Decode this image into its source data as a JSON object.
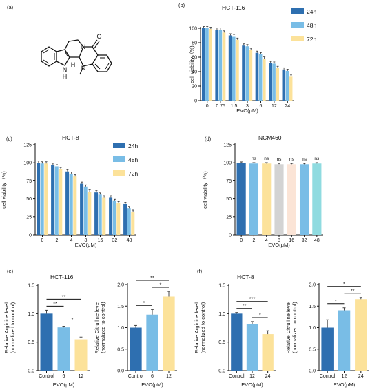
{
  "colors": {
    "c24": "#2e6fb0",
    "c48": "#79bde6",
    "c72": "#fce29a",
    "gray": "#d3d3d3",
    "teal": "#8fdbe0",
    "pink": "#fbe4d6"
  },
  "molecule": {
    "label_nh": "N",
    "label_h": "H",
    "label_h2": "H",
    "label_n2": "N",
    "label_n3": "N",
    "label_o": "O"
  },
  "chart_data": [
    {
      "id": "b",
      "panel_label": "(b)",
      "type": "bar",
      "title": "HCT-116",
      "xlabel": "EVO(μM)",
      "ylabel": "cell viability（%)",
      "categories": [
        "0",
        "0.75",
        "1.5",
        "3",
        "6",
        "12",
        "24"
      ],
      "ylim": [
        0,
        100
      ],
      "yticks": [
        "0",
        "20",
        "40",
        "60",
        "80",
        "100"
      ],
      "legend": "top-right",
      "series": [
        {
          "name": "24h",
          "color": "#2e6fb0",
          "values": [
            100,
            98,
            90,
            76,
            66,
            52,
            43
          ]
        },
        {
          "name": "48h",
          "color": "#79bde6",
          "values": [
            100,
            98,
            89,
            75,
            64,
            51,
            41
          ]
        },
        {
          "name": "72h",
          "color": "#fce29a",
          "values": [
            99,
            94,
            84,
            70,
            58,
            45,
            33
          ]
        }
      ]
    },
    {
      "id": "c",
      "panel_label": "(c)",
      "type": "bar",
      "title": "HCT-8",
      "xlabel": "EVO(μM)",
      "ylabel": "cell viability（%)",
      "categories": [
        "0",
        "2",
        "4",
        "8",
        "16",
        "32",
        "48"
      ],
      "ylim": [
        0,
        125
      ],
      "yticks": [
        "0",
        "25",
        "50",
        "75",
        "100",
        "125"
      ],
      "legend": "top-right",
      "series": [
        {
          "name": "24h",
          "color": "#2e6fb0",
          "values": [
            100,
            97,
            88,
            71,
            59,
            52,
            43
          ]
        },
        {
          "name": "48h",
          "color": "#79bde6",
          "values": [
            99,
            95,
            85,
            67,
            56,
            47,
            37
          ]
        },
        {
          "name": "72h",
          "color": "#fce29a",
          "values": [
            99,
            91,
            81,
            60,
            52,
            44,
            32
          ]
        }
      ]
    },
    {
      "id": "d",
      "panel_label": "(d)",
      "type": "bar",
      "title": "NCM460",
      "xlabel": "EVO(μM)",
      "ylabel": "cell viability（%)",
      "categories": [
        "0",
        "2",
        "4",
        "8",
        "16",
        "32",
        "48"
      ],
      "ylim": [
        0,
        125
      ],
      "yticks": [
        "0",
        "25",
        "50",
        "75",
        "100",
        "125"
      ],
      "bar_colors": [
        "#2e6fb0",
        "#79bde6",
        "#fce29a",
        "#d3d3d3",
        "#fbe4d6",
        "#79bde6",
        "#8fdbe0"
      ],
      "values": [
        100,
        99,
        99,
        98,
        98,
        98,
        99
      ],
      "annotations": [
        "",
        "ns",
        "ns",
        "ns",
        "ns",
        "ns",
        "ns"
      ]
    },
    {
      "id": "e1",
      "panel_label": "(e)",
      "type": "bar",
      "title": "HCT-116",
      "xlabel": "EVO(μM)",
      "ylabel": "Relative Arginine level",
      "ylabel2": "(normalized to control)",
      "categories": [
        "Control",
        "6",
        "12"
      ],
      "ylim": [
        0,
        1.5
      ],
      "yticks": [
        "0.0",
        "0.5",
        "1.0",
        "1.5"
      ],
      "bar_colors": [
        "#2e6fb0",
        "#79bde6",
        "#fce29a"
      ],
      "values": [
        1.0,
        0.76,
        0.55
      ],
      "errors": [
        0.06,
        0.02,
        0.04
      ],
      "significance": [
        {
          "from": 0,
          "to": 2,
          "label": "**"
        },
        {
          "from": 0,
          "to": 1,
          "label": "**"
        },
        {
          "from": 1,
          "to": 2,
          "label": "*"
        }
      ]
    },
    {
      "id": "e2",
      "type": "bar",
      "xlabel": "EVO(μM)",
      "ylabel": "Relative Citrulline level",
      "ylabel2": "(normalized to control)",
      "categories": [
        "Control",
        "6",
        "12"
      ],
      "ylim": [
        0,
        2.0
      ],
      "yticks": [
        "0.0",
        "0.5",
        "1.0",
        "1.5",
        "2.0"
      ],
      "bar_colors": [
        "#2e6fb0",
        "#79bde6",
        "#fce29a"
      ],
      "values": [
        1.0,
        1.3,
        1.72
      ],
      "errors": [
        0.05,
        0.12,
        0.12
      ],
      "significance": [
        {
          "from": 0,
          "to": 2,
          "label": "**"
        },
        {
          "from": 1,
          "to": 2,
          "label": "*"
        },
        {
          "from": 0,
          "to": 1,
          "label": "*"
        }
      ]
    },
    {
      "id": "f1",
      "panel_label": "(f)",
      "type": "bar",
      "title": "HCT-8",
      "xlabel": "EVO(μM)",
      "ylabel": "Relative Arginine level",
      "ylabel2": "(normalized to control)",
      "categories": [
        "Control",
        "12",
        "24"
      ],
      "ylim": [
        0,
        1.5
      ],
      "yticks": [
        "0.0",
        "0.5",
        "1.0",
        "1.5"
      ],
      "bar_colors": [
        "#2e6fb0",
        "#79bde6",
        "#fce29a"
      ],
      "values": [
        1.0,
        0.82,
        0.64
      ],
      "errors": [
        0.02,
        0.04,
        0.06
      ],
      "significance": [
        {
          "from": 0,
          "to": 2,
          "label": "***"
        },
        {
          "from": 0,
          "to": 1,
          "label": "**"
        },
        {
          "from": 1,
          "to": 2,
          "label": "*"
        }
      ]
    },
    {
      "id": "f2",
      "type": "bar",
      "xlabel": "EVO(μM)",
      "ylabel": "Relative Citrulline level",
      "ylabel2": "(normalized to control)",
      "categories": [
        "Control",
        "12",
        "24"
      ],
      "ylim": [
        0,
        2.0
      ],
      "yticks": [
        "0.0",
        "0.5",
        "1.0",
        "1.5",
        "2.0"
      ],
      "bar_colors": [
        "#2e6fb0",
        "#79bde6",
        "#fce29a"
      ],
      "values": [
        1.0,
        1.4,
        1.66
      ],
      "errors": [
        0.18,
        0.06,
        0.04
      ],
      "significance": [
        {
          "from": 0,
          "to": 2,
          "label": "*"
        },
        {
          "from": 1,
          "to": 2,
          "label": "**"
        },
        {
          "from": 0,
          "to": 1,
          "label": "*"
        }
      ]
    }
  ]
}
